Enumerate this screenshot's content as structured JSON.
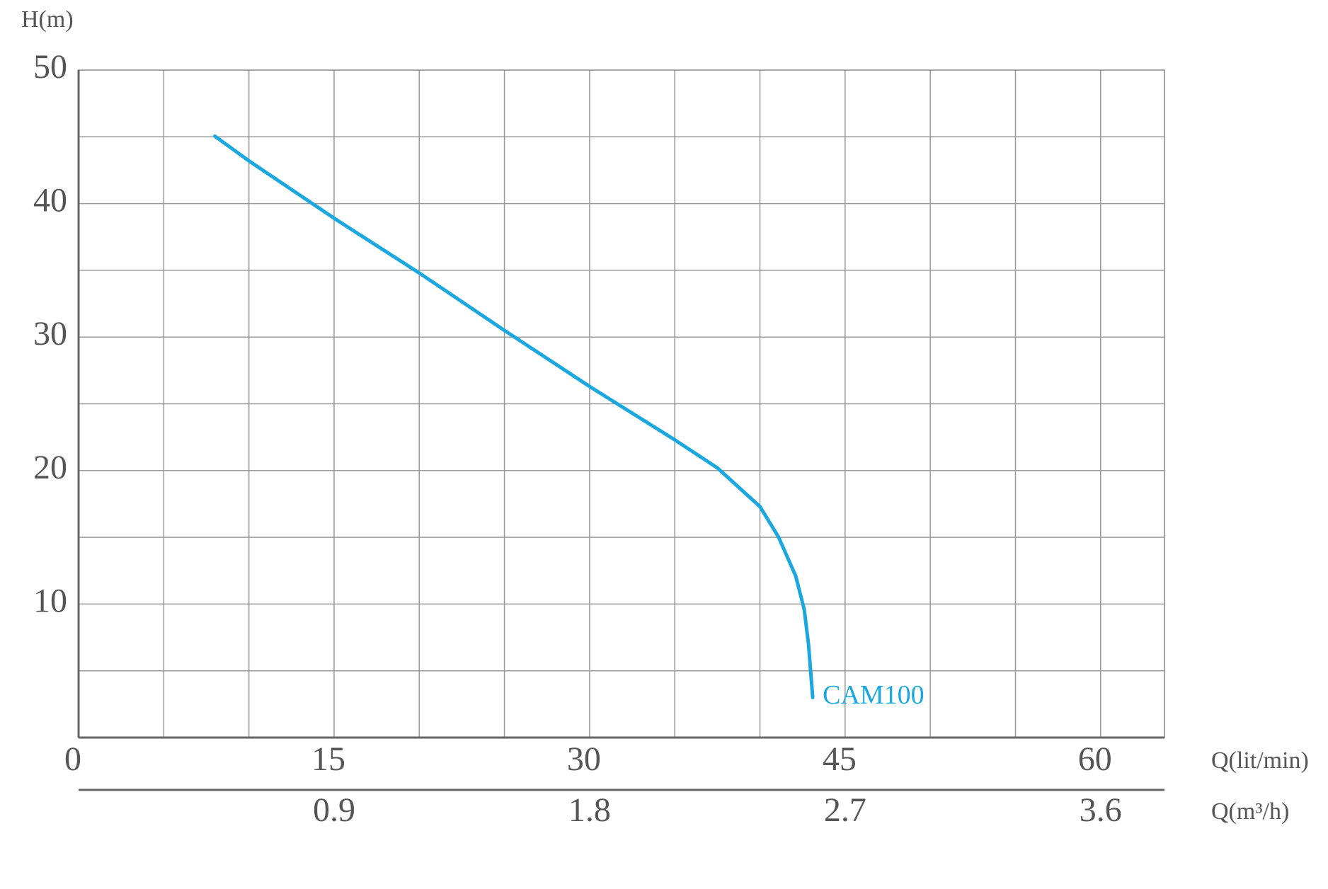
{
  "chart_data": {
    "type": "line",
    "y_label": "H(m)",
    "x_label": "Q(lit/min)",
    "x2_label": "Q(m³/h)",
    "xlim": [
      0,
      63.75
    ],
    "xticks": [
      0,
      15,
      30,
      45,
      60
    ],
    "xgrid": [
      5,
      10,
      15,
      20,
      25,
      30,
      35,
      40,
      45,
      50,
      55,
      60
    ],
    "x2lim": [
      0,
      3.825
    ],
    "x2ticks": [
      0.9,
      1.8,
      2.7,
      3.6
    ],
    "ylim": [
      0,
      50
    ],
    "yticks": [
      10,
      20,
      30,
      40,
      50
    ],
    "ygrid": [
      5,
      10,
      15,
      20,
      25,
      30,
      35,
      40,
      45
    ],
    "grid": true,
    "series": [
      {
        "name": "CAM100",
        "color": "#1ba8e0",
        "x": [
          8.0,
          10,
          15,
          20,
          25,
          30,
          35,
          37.5,
          40,
          41.1,
          42.1,
          42.6,
          42.85,
          43.1
        ],
        "values": [
          45.05,
          43.2,
          38.9,
          34.8,
          30.5,
          26.3,
          22.3,
          20.2,
          17.3,
          15.0,
          12.1,
          9.6,
          7.0,
          3.0
        ]
      }
    ]
  }
}
